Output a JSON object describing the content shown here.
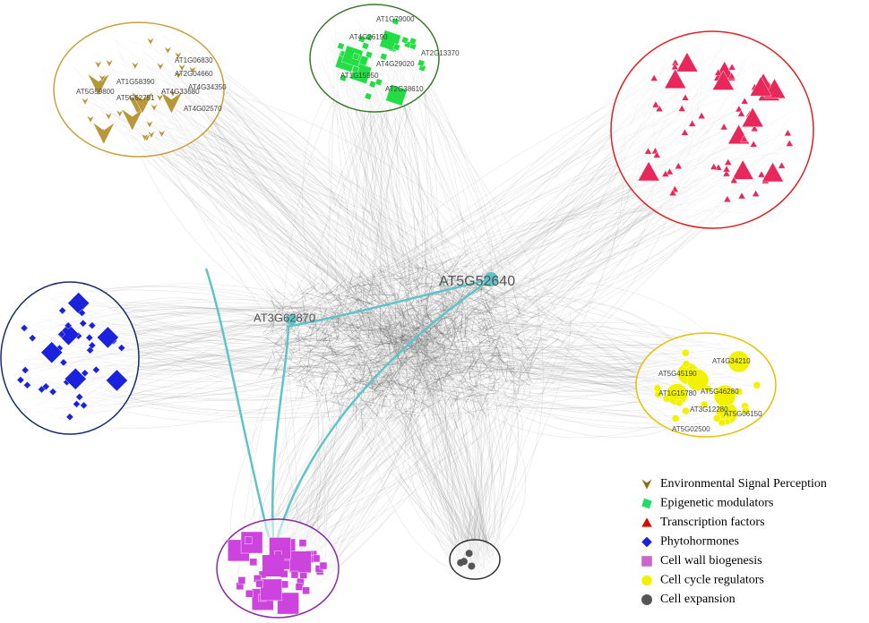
{
  "hubs": [
    "AT5G52640",
    "AT3G62870"
  ],
  "clusters": [
    {
      "labels": [
        "AT1G06830",
        "AT2G04660",
        "AT5G59800",
        "AT1G58390",
        "AT5G62751",
        "AT4G33680",
        "AT4G34350",
        "AT4G02570"
      ]
    },
    {
      "labels": [
        "AT1G79000",
        "AT4G26190",
        "AT2G13370",
        "AT4G29020",
        "AT1G15950",
        "AT2G38610"
      ]
    },
    {
      "labels": [
        "AT4G34210",
        "AT5G45190",
        "AT5G46280",
        "AT1G15780",
        "AT3G12280",
        "AT5G06150",
        "AT5G02500"
      ]
    }
  ],
  "legend": [
    "Environmental Signal Perception",
    "Epigenetic modulators",
    "Transcription factors",
    "Phytohormones",
    "Cell wall biogenesis",
    "Cell cycle regulators",
    "Cell expansion"
  ]
}
